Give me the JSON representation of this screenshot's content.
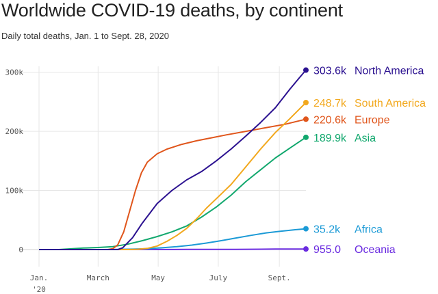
{
  "chart_data": {
    "type": "line",
    "title": "Worldwide COVID-19 deaths, by continent",
    "subtitle": "Daily total deaths, Jan. 1 to Sept. 28, 2020",
    "ylim": [
      0,
      310000
    ],
    "grid": true,
    "x_ticks": [
      {
        "label": "Jan.",
        "label2": "'20",
        "day": 0
      },
      {
        "label": "March",
        "label2": "",
        "day": 60
      },
      {
        "label": "May",
        "label2": "",
        "day": 121
      },
      {
        "label": "July",
        "label2": "",
        "day": 182
      },
      {
        "label": "Sept.",
        "label2": "",
        "day": 244
      }
    ],
    "x_end_day": 271,
    "y_ticks": [
      {
        "label": "0",
        "value": 0
      },
      {
        "label": "100k",
        "value": 100000
      },
      {
        "label": "200k",
        "value": 200000
      },
      {
        "label": "300k",
        "value": 300000
      }
    ],
    "series": [
      {
        "name": "North America",
        "value_label": "303.6k",
        "color": "#2b1190",
        "points": [
          [
            0,
            0
          ],
          [
            80,
            0
          ],
          [
            85,
            3000
          ],
          [
            95,
            20000
          ],
          [
            105,
            45000
          ],
          [
            120,
            78000
          ],
          [
            135,
            100000
          ],
          [
            150,
            118000
          ],
          [
            165,
            132000
          ],
          [
            180,
            150000
          ],
          [
            195,
            170000
          ],
          [
            210,
            192000
          ],
          [
            225,
            215000
          ],
          [
            240,
            240000
          ],
          [
            255,
            272000
          ],
          [
            265,
            292000
          ],
          [
            271,
            303600
          ]
        ]
      },
      {
        "name": "South America",
        "value_label": "248.7k",
        "color": "#f2a81d",
        "points": [
          [
            0,
            0
          ],
          [
            90,
            0
          ],
          [
            100,
            500
          ],
          [
            110,
            2000
          ],
          [
            120,
            6000
          ],
          [
            130,
            14000
          ],
          [
            140,
            24000
          ],
          [
            150,
            36000
          ],
          [
            160,
            52000
          ],
          [
            170,
            70000
          ],
          [
            180,
            86000
          ],
          [
            195,
            110000
          ],
          [
            210,
            140000
          ],
          [
            225,
            170000
          ],
          [
            240,
            198000
          ],
          [
            255,
            222000
          ],
          [
            271,
            248700
          ]
        ]
      },
      {
        "name": "Europe",
        "value_label": "220.6k",
        "color": "#e0561c",
        "points": [
          [
            0,
            0
          ],
          [
            70,
            0
          ],
          [
            75,
            1500
          ],
          [
            80,
            8000
          ],
          [
            86,
            30000
          ],
          [
            92,
            65000
          ],
          [
            98,
            100000
          ],
          [
            104,
            130000
          ],
          [
            110,
            148000
          ],
          [
            120,
            162000
          ],
          [
            130,
            170000
          ],
          [
            145,
            178000
          ],
          [
            160,
            184000
          ],
          [
            175,
            189000
          ],
          [
            190,
            194000
          ],
          [
            210,
            200000
          ],
          [
            230,
            206000
          ],
          [
            250,
            212000
          ],
          [
            271,
            220600
          ]
        ]
      },
      {
        "name": "Asia",
        "value_label": "189.9k",
        "color": "#12a86e",
        "points": [
          [
            0,
            0
          ],
          [
            20,
            0
          ],
          [
            30,
            1000
          ],
          [
            45,
            2500
          ],
          [
            60,
            3500
          ],
          [
            75,
            5000
          ],
          [
            90,
            9000
          ],
          [
            105,
            15000
          ],
          [
            120,
            22000
          ],
          [
            135,
            30000
          ],
          [
            150,
            40000
          ],
          [
            165,
            55000
          ],
          [
            180,
            72000
          ],
          [
            195,
            92000
          ],
          [
            210,
            115000
          ],
          [
            225,
            135000
          ],
          [
            240,
            155000
          ],
          [
            255,
            172000
          ],
          [
            271,
            189900
          ]
        ]
      },
      {
        "name": "Africa",
        "value_label": "35.2k",
        "color": "#1b9ad6",
        "points": [
          [
            0,
            0
          ],
          [
            65,
            0
          ],
          [
            80,
            200
          ],
          [
            95,
            700
          ],
          [
            110,
            1500
          ],
          [
            125,
            3000
          ],
          [
            140,
            5000
          ],
          [
            155,
            7500
          ],
          [
            170,
            11000
          ],
          [
            185,
            15000
          ],
          [
            200,
            19500
          ],
          [
            215,
            24000
          ],
          [
            230,
            28000
          ],
          [
            245,
            31000
          ],
          [
            260,
            33500
          ],
          [
            271,
            35200
          ]
        ]
      },
      {
        "name": "Oceania",
        "value_label": "955.0",
        "color": "#6a2be0",
        "points": [
          [
            0,
            0
          ],
          [
            80,
            0
          ],
          [
            100,
            150
          ],
          [
            150,
            200
          ],
          [
            200,
            400
          ],
          [
            240,
            850
          ],
          [
            271,
            955
          ]
        ]
      }
    ]
  }
}
